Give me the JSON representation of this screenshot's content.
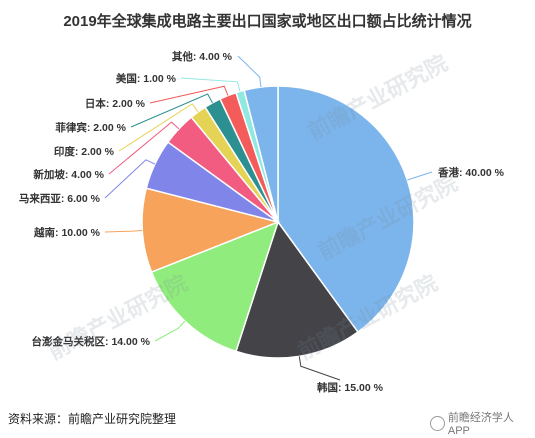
{
  "chart_data": {
    "type": "pie",
    "title": "2019年全球集成电路主要出口国家或地区出口额占比统计情况",
    "slices": [
      {
        "name": "香港",
        "value": 40.0,
        "label": "香港: 40.00 %",
        "color": "#7cb5ec"
      },
      {
        "name": "韩国",
        "value": 15.0,
        "label": "韩国: 15.00 %",
        "color": "#434348"
      },
      {
        "name": "台澎金马关税区",
        "value": 14.0,
        "label": "台澎金马关税区: 14.00 %",
        "color": "#90ed7d"
      },
      {
        "name": "越南",
        "value": 10.0,
        "label": "越南: 10.00 %",
        "color": "#f7a35c"
      },
      {
        "name": "马来西亚",
        "value": 6.0,
        "label": "马来西亚: 6.00 %",
        "color": "#8085e9"
      },
      {
        "name": "新加坡",
        "value": 4.0,
        "label": "新加坡: 4.00 %",
        "color": "#f15c80"
      },
      {
        "name": "印度",
        "value": 2.0,
        "label": "印度: 2.00 %",
        "color": "#e4d354"
      },
      {
        "name": "菲律宾",
        "value": 2.0,
        "label": "菲律宾: 2.00 %",
        "color": "#2b908f"
      },
      {
        "name": "日本",
        "value": 2.0,
        "label": "日本: 2.00 %",
        "color": "#f45b5b"
      },
      {
        "name": "美国",
        "value": 1.0,
        "label": "美国: 1.00 %",
        "color": "#91e8e1"
      },
      {
        "name": "其他",
        "value": 4.0,
        "label": "其他: 4.00 %",
        "color": "#7cb5ec"
      }
    ]
  },
  "footer": {
    "source": "资料来源：前瞻产业研究院整理",
    "brand": "前瞻经济学人APP"
  },
  "watermark": "前瞻产业研究院"
}
